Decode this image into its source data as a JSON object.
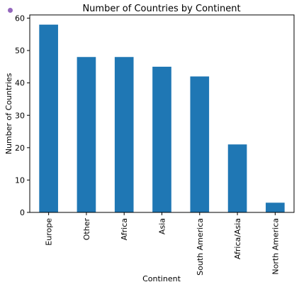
{
  "chart_data": {
    "type": "bar",
    "title": "Number of Countries by Continent",
    "xlabel": "Continent",
    "ylabel": "Number of Countries",
    "categories": [
      "Europe",
      "Other",
      "Africa",
      "Asia",
      "South America",
      "Africa/Asia",
      "North America"
    ],
    "values": [
      58,
      48,
      48,
      45,
      42,
      21,
      3
    ],
    "ylim": [
      0,
      61
    ],
    "yticks": [
      0,
      10,
      20,
      30,
      40,
      50,
      60
    ],
    "bar_color": "#1f77b4",
    "grid": false,
    "legend": false,
    "marker_dot_color": "#9467bd"
  }
}
